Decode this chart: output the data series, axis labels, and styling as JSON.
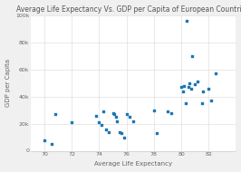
{
  "title": "Average Life Expectancy Vs. GDP per Capita of European Countries",
  "xlabel": "Average Life Expectancy",
  "ylabel": "GDP per Capita",
  "scatter_points": [
    [
      70.0,
      8000
    ],
    [
      70.5,
      5000
    ],
    [
      70.8,
      27000
    ],
    [
      72.0,
      21000
    ],
    [
      73.8,
      26000
    ],
    [
      74.0,
      21000
    ],
    [
      74.2,
      19000
    ],
    [
      74.3,
      29000
    ],
    [
      74.5,
      16000
    ],
    [
      74.7,
      14000
    ],
    [
      75.0,
      28000
    ],
    [
      75.1,
      27000
    ],
    [
      75.2,
      25000
    ],
    [
      75.3,
      22000
    ],
    [
      75.5,
      14000
    ],
    [
      75.6,
      13000
    ],
    [
      75.8,
      10000
    ],
    [
      76.0,
      27000
    ],
    [
      76.2,
      25000
    ],
    [
      76.5,
      22000
    ],
    [
      78.0,
      30000
    ],
    [
      78.2,
      13000
    ],
    [
      79.0,
      29000
    ],
    [
      79.3,
      28000
    ],
    [
      80.0,
      47000
    ],
    [
      80.1,
      44000
    ],
    [
      80.2,
      48000
    ],
    [
      80.3,
      35000
    ],
    [
      80.4,
      96000
    ],
    [
      80.5,
      47000
    ],
    [
      80.6,
      50000
    ],
    [
      80.7,
      46000
    ],
    [
      80.8,
      70000
    ],
    [
      81.0,
      49000
    ],
    [
      81.2,
      51000
    ],
    [
      81.5,
      35000
    ],
    [
      81.6,
      44000
    ],
    [
      82.0,
      46000
    ],
    [
      82.2,
      37000
    ],
    [
      82.5,
      57000
    ]
  ],
  "marker_color": "#1f77b4",
  "marker_size": 3,
  "xlim": [
    69,
    84
  ],
  "ylim": [
    0,
    100000
  ],
  "yticks": [
    0,
    20000,
    40000,
    60000,
    80000,
    100000
  ],
  "ytick_labels": [
    "0",
    "20k",
    "40k",
    "60k",
    "80k",
    "100k"
  ],
  "xticks": [
    70,
    72,
    74,
    76,
    78,
    80,
    82
  ],
  "background_color": "#f0f0f0",
  "plot_background_color": "#ffffff",
  "grid_color": "#d8d8d8",
  "title_fontsize": 5.5,
  "axis_label_fontsize": 5,
  "tick_fontsize": 4.5,
  "spine_color": "#cccccc"
}
